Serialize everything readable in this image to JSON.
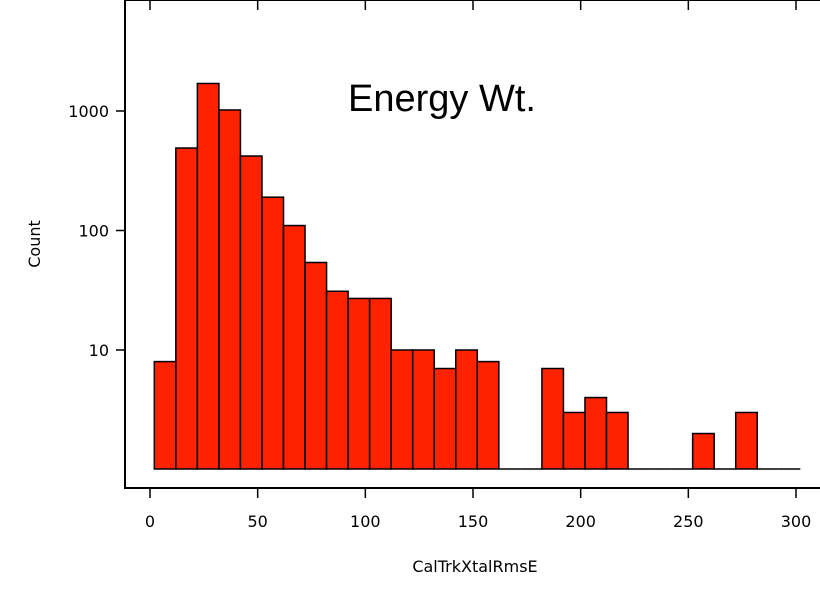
{
  "chart_data": {
    "type": "bar",
    "title": "",
    "annotation": "Energy Wt.",
    "xlabel": "CalTrkXtalRmsE",
    "ylabel": "Count",
    "yscale": "log",
    "xlim": [
      -10,
      310
    ],
    "ylim": [
      0.9,
      7000
    ],
    "bar_color": "#ff2200",
    "x_ticks": [
      0,
      50,
      100,
      150,
      200,
      250,
      300
    ],
    "y_ticks": [
      10,
      100,
      1000
    ],
    "bin_width": 10,
    "bins": [
      {
        "start": 2,
        "end": 12,
        "count": 8
      },
      {
        "start": 12,
        "end": 22,
        "count": 490
      },
      {
        "start": 22,
        "end": 32,
        "count": 1700
      },
      {
        "start": 32,
        "end": 42,
        "count": 1020
      },
      {
        "start": 42,
        "end": 52,
        "count": 420
      },
      {
        "start": 52,
        "end": 62,
        "count": 190
      },
      {
        "start": 62,
        "end": 72,
        "count": 110
      },
      {
        "start": 72,
        "end": 82,
        "count": 54
      },
      {
        "start": 82,
        "end": 92,
        "count": 31
      },
      {
        "start": 92,
        "end": 102,
        "count": 27
      },
      {
        "start": 102,
        "end": 112,
        "count": 27
      },
      {
        "start": 112,
        "end": 122,
        "count": 10
      },
      {
        "start": 122,
        "end": 132,
        "count": 10
      },
      {
        "start": 132,
        "end": 142,
        "count": 7
      },
      {
        "start": 142,
        "end": 152,
        "count": 10
      },
      {
        "start": 152,
        "end": 162,
        "count": 8
      },
      {
        "start": 162,
        "end": 172,
        "count": 1
      },
      {
        "start": 172,
        "end": 182,
        "count": 1
      },
      {
        "start": 182,
        "end": 192,
        "count": 7
      },
      {
        "start": 192,
        "end": 202,
        "count": 3
      },
      {
        "start": 202,
        "end": 212,
        "count": 4
      },
      {
        "start": 212,
        "end": 222,
        "count": 3
      },
      {
        "start": 222,
        "end": 232,
        "count": 1
      },
      {
        "start": 232,
        "end": 242,
        "count": 1
      },
      {
        "start": 242,
        "end": 252,
        "count": 1
      },
      {
        "start": 252,
        "end": 262,
        "count": 2
      },
      {
        "start": 262,
        "end": 272,
        "count": 1
      },
      {
        "start": 272,
        "end": 282,
        "count": 3
      },
      {
        "start": 282,
        "end": 292,
        "count": 1
      },
      {
        "start": 292,
        "end": 302,
        "count": 1
      }
    ],
    "empty_bins": [
      162,
      172,
      222,
      232,
      242,
      262,
      292
    ]
  }
}
